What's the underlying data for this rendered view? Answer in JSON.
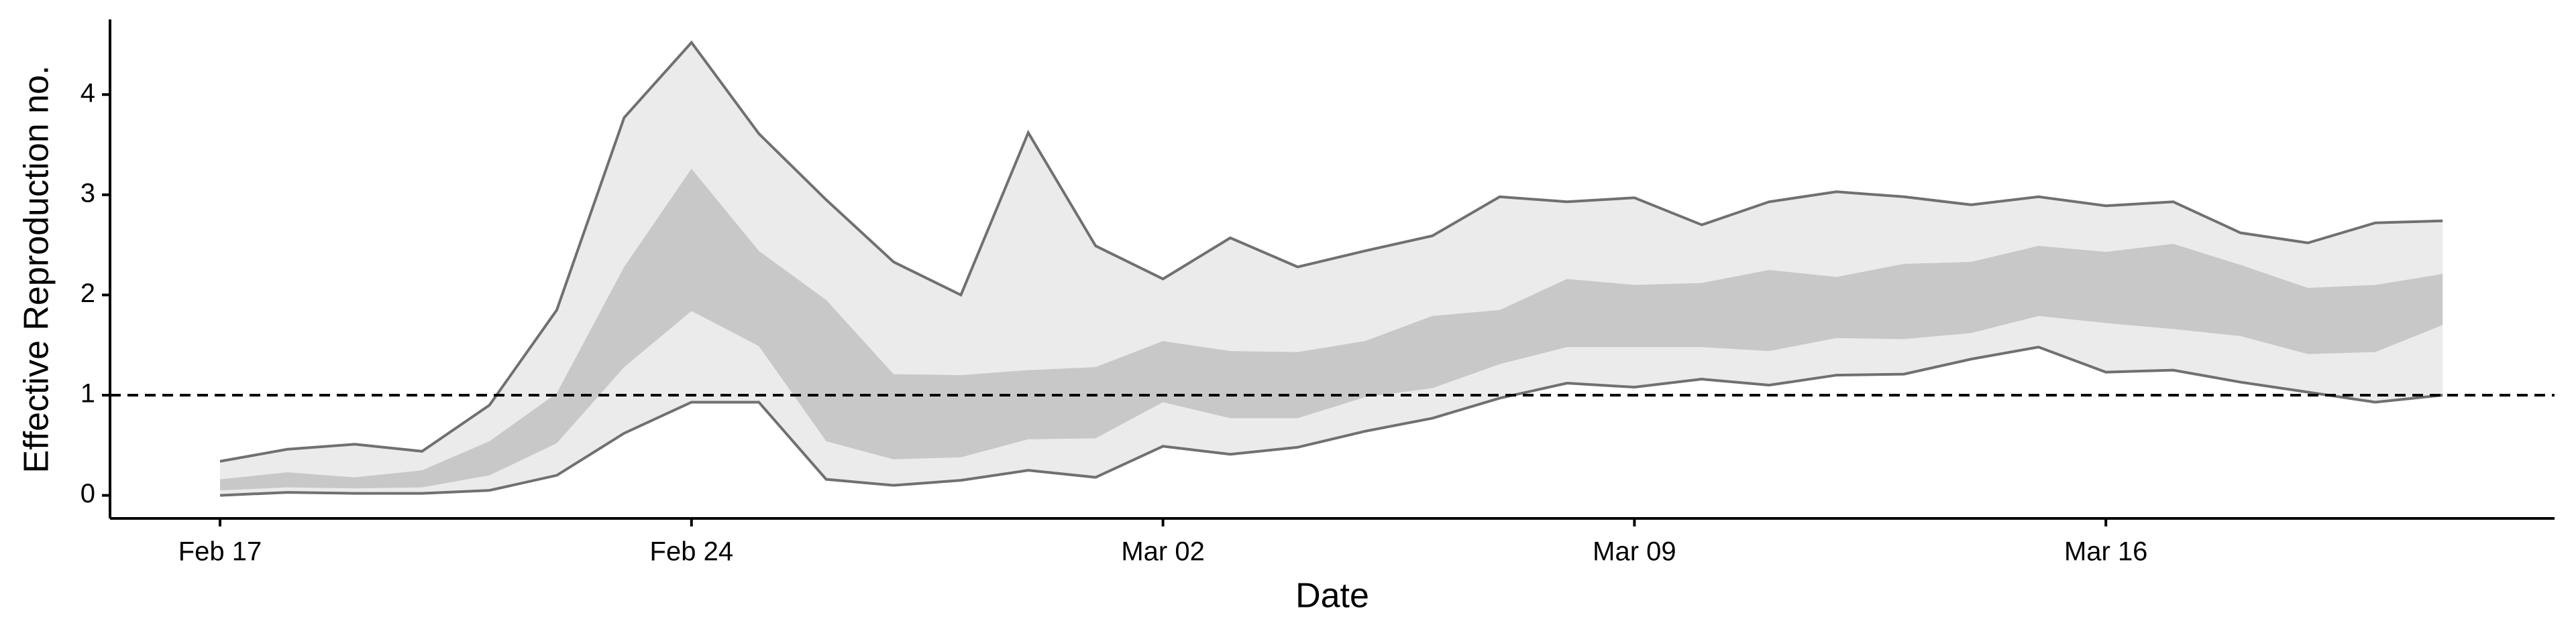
{
  "chart_data": {
    "type": "band",
    "x_label": "Date",
    "y_label": "Effective Reproduction no.",
    "categories": [
      "Feb 17",
      "Feb 18",
      "Feb 19",
      "Feb 20",
      "Feb 21",
      "Feb 22",
      "Feb 23",
      "Feb 24",
      "Feb 25",
      "Feb 26",
      "Feb 27",
      "Feb 28",
      "Feb 29",
      "Mar 01",
      "Mar 02",
      "Mar 03",
      "Mar 04",
      "Mar 05",
      "Mar 06",
      "Mar 07",
      "Mar 08",
      "Mar 09",
      "Mar 10",
      "Mar 11",
      "Mar 12",
      "Mar 13",
      "Mar 14",
      "Mar 15",
      "Mar 16",
      "Mar 17",
      "Mar 18",
      "Mar 19",
      "Mar 20",
      "Mar 21"
    ],
    "xticks": [
      "Feb 17",
      "Feb 24",
      "Mar 02",
      "Mar 09",
      "Mar 16"
    ],
    "bands": [
      {
        "color": "#ebebeb",
        "upper": [
          0.34,
          0.46,
          0.51,
          0.44,
          0.9,
          1.85,
          3.77,
          4.52,
          3.61,
          2.95,
          2.33,
          2.0,
          3.62,
          2.49,
          2.16,
          2.57,
          2.28,
          2.44,
          2.59,
          2.98,
          2.93,
          2.97,
          2.7,
          2.93,
          3.03,
          2.98,
          2.9,
          2.98,
          2.89,
          2.93,
          2.62,
          2.52,
          2.72,
          2.74
        ],
        "lower": [
          0.0,
          0.03,
          0.02,
          0.02,
          0.05,
          0.2,
          0.62,
          0.93,
          0.93,
          0.16,
          0.1,
          0.15,
          0.25,
          0.18,
          0.49,
          0.41,
          0.48,
          0.64,
          0.77,
          0.97,
          1.12,
          1.08,
          1.16,
          1.1,
          1.2,
          1.21,
          1.36,
          1.48,
          1.23,
          1.25,
          1.13,
          1.03,
          0.93,
          1.0
        ]
      },
      {
        "color": "#c8c8c8",
        "upper": [
          0.16,
          0.23,
          0.18,
          0.25,
          0.54,
          1.02,
          2.28,
          3.26,
          2.44,
          1.95,
          1.21,
          1.2,
          1.25,
          1.28,
          1.54,
          1.44,
          1.43,
          1.54,
          1.79,
          1.85,
          2.16,
          2.1,
          2.12,
          2.25,
          2.18,
          2.31,
          2.33,
          2.49,
          2.43,
          2.51,
          2.3,
          2.07,
          2.1,
          2.21
        ],
        "lower": [
          0.05,
          0.08,
          0.07,
          0.08,
          0.2,
          0.52,
          1.28,
          1.84,
          1.49,
          0.54,
          0.36,
          0.38,
          0.56,
          0.57,
          0.93,
          0.77,
          0.77,
          0.98,
          1.07,
          1.31,
          1.48,
          1.48,
          1.48,
          1.44,
          1.57,
          1.56,
          1.62,
          1.79,
          1.72,
          1.66,
          1.59,
          1.41,
          1.43,
          1.7
        ]
      }
    ],
    "line_color": "#707070",
    "hline": 1,
    "ylim": [
      -0.23,
      4.75
    ],
    "yticks": [
      0,
      1,
      2,
      3,
      4
    ]
  }
}
